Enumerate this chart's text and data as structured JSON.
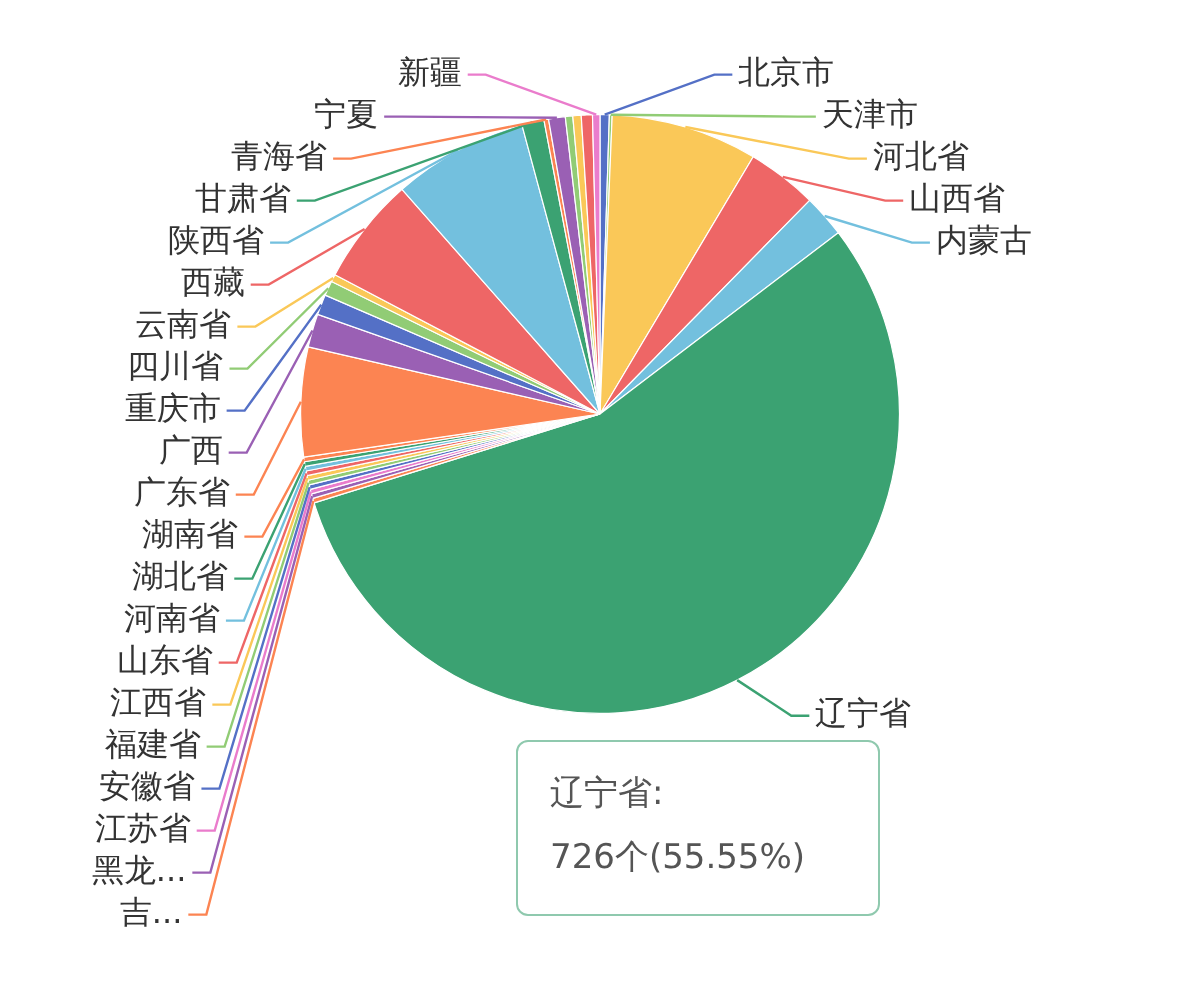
{
  "chart_data": {
    "type": "pie",
    "categories": [
      "北京市",
      "天津市",
      "河北省",
      "山西省",
      "内蒙古",
      "辽宁省",
      "吉...",
      "黑龙...",
      "江苏省",
      "安徽省",
      "福建省",
      "江西省",
      "山东省",
      "河南省",
      "湖北省",
      "湖南省",
      "广东省",
      "广西",
      "重庆市",
      "四川省",
      "云南省",
      "西藏",
      "陕西省",
      "甘肃省",
      "青海省",
      "宁夏",
      null,
      null,
      null,
      "新疆"
    ],
    "values": [
      0.5,
      0.15,
      7.9,
      3.8,
      2.3,
      55.55,
      0.25,
      0.25,
      0.25,
      0.25,
      0.25,
      0.25,
      0.25,
      0.25,
      0.25,
      0.25,
      5.9,
      1.8,
      1.1,
      0.8,
      0.4,
      5.8,
      7.3,
      1.2,
      0.25,
      0.9,
      0.4,
      0.45,
      0.6,
      0.4
    ],
    "colors": [
      "#5470c6",
      "#91cc75",
      "#fac858",
      "#ee6666",
      "#73c0de",
      "#3ba272",
      "#fc8452",
      "#9a60b4",
      "#ea7ccc",
      "#5470c6",
      "#91cc75",
      "#fac858",
      "#ee6666",
      "#73c0de",
      "#3ba272",
      "#fc8452",
      "#fc8452",
      "#9a60b4",
      "#5470c6",
      "#91cc75",
      "#fac858",
      "#ee6666",
      "#73c0de",
      "#3ba272",
      "#fc8452",
      "#9a60b4",
      "#91cc75",
      "#fac858",
      "#ee6666",
      "#ea7ccc"
    ],
    "annotations": [
      "辽宁省:",
      "726个(55.55%)"
    ]
  }
}
